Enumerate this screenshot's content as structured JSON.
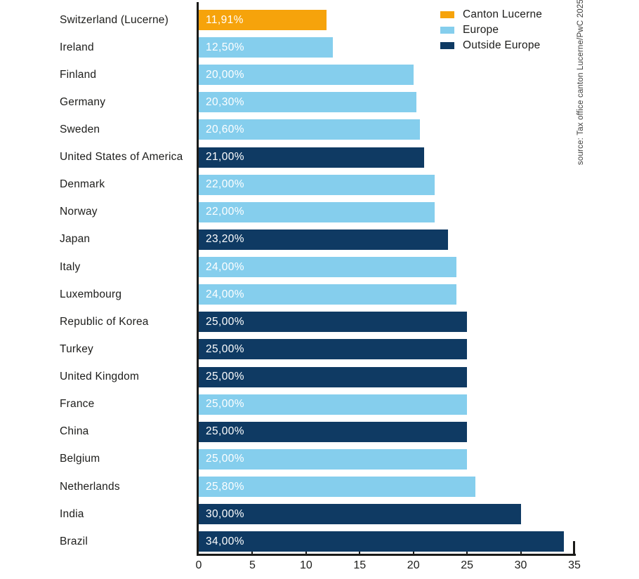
{
  "legend": {
    "items": [
      {
        "label": "Canton Lucerne",
        "series_key": "canton_lucerne",
        "color": "#F6A30B"
      },
      {
        "label": "Europe",
        "series_key": "europe",
        "color": "#85CEED"
      },
      {
        "label": "Outside Europe",
        "series_key": "outside_europe",
        "color": "#0F3A63"
      }
    ]
  },
  "source_note": "source: Tax office canton Lucerne/PwC 2025",
  "colors": {
    "axis": "#1A1A18",
    "label_text": "#1D1D1B",
    "bar_value_text": "#FFFFFF",
    "background": "#FFFFFF",
    "source_text": "#3C3C3B"
  },
  "chart_data": {
    "type": "bar",
    "orientation": "horizontal",
    "title": "",
    "xlabel": "",
    "ylabel": "",
    "unit": "%",
    "xlim": [
      0,
      35
    ],
    "x_ticks": [
      0,
      5,
      10,
      15,
      20,
      25,
      30,
      35
    ],
    "grid": false,
    "legend_position": "top-right",
    "series_colors": {
      "canton_lucerne": "#F6A30B",
      "europe": "#85CEED",
      "outside_europe": "#0F3A63"
    },
    "rows": [
      {
        "country": "Switzerland (Lucerne)",
        "value": 11.91,
        "value_label": "11,91%",
        "group": "canton_lucerne"
      },
      {
        "country": "Ireland",
        "value": 12.5,
        "value_label": "12,50%",
        "group": "europe"
      },
      {
        "country": "Finland",
        "value": 20.0,
        "value_label": "20,00%",
        "group": "europe"
      },
      {
        "country": "Germany",
        "value": 20.3,
        "value_label": "20,30%",
        "group": "europe"
      },
      {
        "country": "Sweden",
        "value": 20.6,
        "value_label": "20,60%",
        "group": "europe"
      },
      {
        "country": "United States of America",
        "value": 21.0,
        "value_label": "21,00%",
        "group": "outside_europe"
      },
      {
        "country": "Denmark",
        "value": 22.0,
        "value_label": "22,00%",
        "group": "europe"
      },
      {
        "country": "Norway",
        "value": 22.0,
        "value_label": "22,00%",
        "group": "europe"
      },
      {
        "country": "Japan",
        "value": 23.2,
        "value_label": "23,20%",
        "group": "outside_europe"
      },
      {
        "country": "Italy",
        "value": 24.0,
        "value_label": "24,00%",
        "group": "europe"
      },
      {
        "country": "Luxembourg",
        "value": 24.0,
        "value_label": "24,00%",
        "group": "europe"
      },
      {
        "country": "Republic of Korea",
        "value": 25.0,
        "value_label": "25,00%",
        "group": "outside_europe"
      },
      {
        "country": "Turkey",
        "value": 25.0,
        "value_label": "25,00%",
        "group": "outside_europe"
      },
      {
        "country": "United Kingdom",
        "value": 25.0,
        "value_label": "25,00%",
        "group": "outside_europe"
      },
      {
        "country": "France",
        "value": 25.0,
        "value_label": "25,00%",
        "group": "europe"
      },
      {
        "country": "China",
        "value": 25.0,
        "value_label": "25,00%",
        "group": "outside_europe"
      },
      {
        "country": "Belgium",
        "value": 25.0,
        "value_label": "25,00%",
        "group": "europe"
      },
      {
        "country": "Netherlands",
        "value": 25.8,
        "value_label": "25,80%",
        "group": "europe"
      },
      {
        "country": "India",
        "value": 30.0,
        "value_label": "30,00%",
        "group": "outside_europe"
      },
      {
        "country": "Brazil",
        "value": 34.0,
        "value_label": "34,00%",
        "group": "outside_europe"
      }
    ]
  }
}
